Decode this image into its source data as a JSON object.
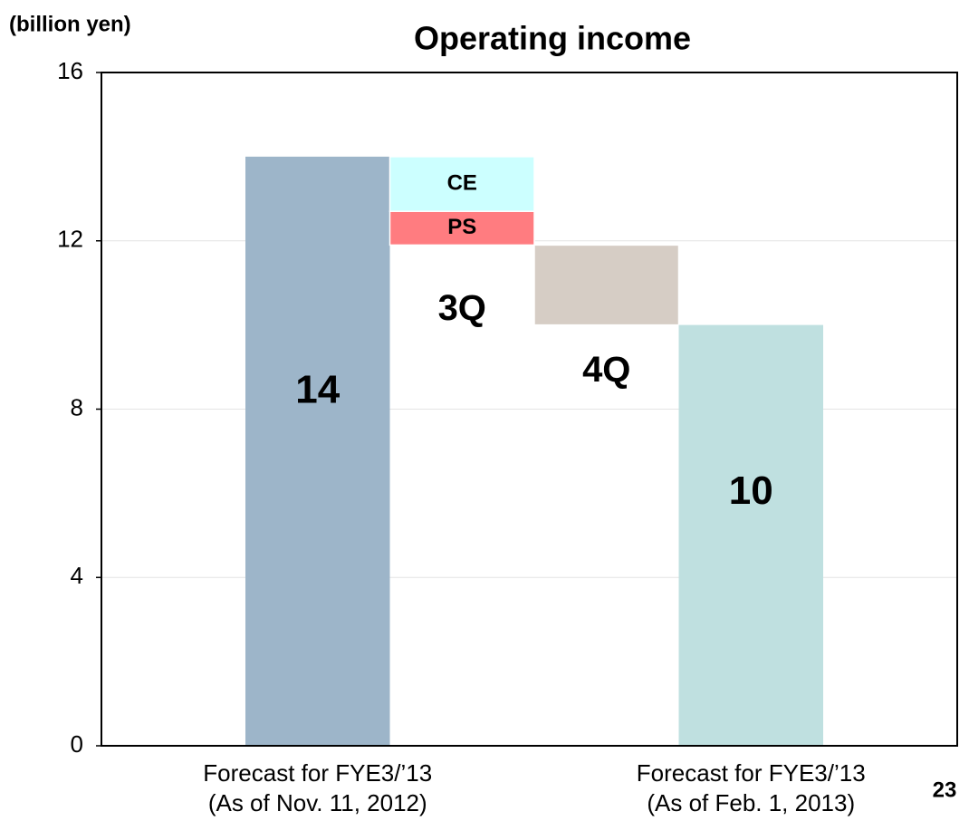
{
  "chart_data": {
    "type": "waterfall",
    "title": "Operating income",
    "y_label": "(billion yen)",
    "page_number": "23",
    "ylim": [
      0,
      16
    ],
    "yticks": [
      0,
      4,
      8,
      12,
      16
    ],
    "grid": true,
    "columns": [
      {
        "kind": "total",
        "category": [
          "Forecast for FYE3/’13",
          "(As of Nov. 11, 2012)"
        ],
        "value": 14,
        "color": "#9db5c9"
      },
      {
        "kind": "decrease",
        "label": "3Q",
        "segments": [
          {
            "name": "CE",
            "value": 1.3,
            "color": "#ccffff"
          },
          {
            "name": "PS",
            "value": 0.8,
            "color": "#ff7c80"
          }
        ]
      },
      {
        "kind": "decrease",
        "label": "4Q",
        "segments": [
          {
            "value": 1.9,
            "color": "#d6cdc5"
          }
        ]
      },
      {
        "kind": "total",
        "category": [
          "Forecast for FYE3/’13",
          "(As of Feb. 1, 2013)"
        ],
        "value": 10,
        "color": "#bfe0e0"
      }
    ]
  }
}
